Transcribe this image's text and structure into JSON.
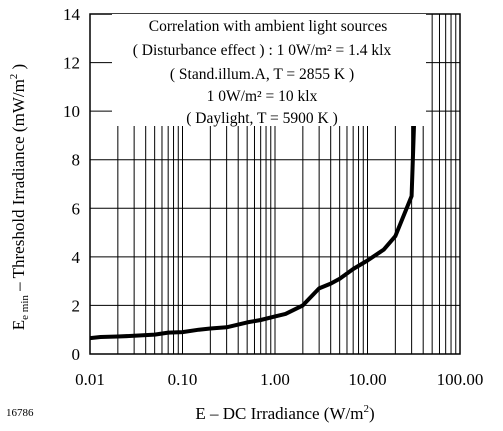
{
  "chart_data": {
    "type": "line",
    "x_scale": "log",
    "xlim": [
      0.01,
      100
    ],
    "ylim": [
      0,
      14
    ],
    "grid": true,
    "xlabel_main": "E – DC Irradiance (W/m",
    "xlabel_sup": "2",
    "xlabel_end": ")",
    "ylabel_sub_symbol": "E",
    "ylabel_subscript": "e min",
    "ylabel_main": " – Threshold Irradiance (mW/m",
    "ylabel_sup": "2",
    "ylabel_end": " )",
    "x_ticks": [
      {
        "value": 0.01,
        "label": "0.01"
      },
      {
        "value": 0.1,
        "label": "0.10"
      },
      {
        "value": 1,
        "label": "1.00"
      },
      {
        "value": 10,
        "label": "10.00"
      },
      {
        "value": 100,
        "label": "100.00"
      }
    ],
    "y_ticks": [
      {
        "value": 0,
        "label": "0"
      },
      {
        "value": 2,
        "label": "2"
      },
      {
        "value": 4,
        "label": "4"
      },
      {
        "value": 6,
        "label": "6"
      },
      {
        "value": 8,
        "label": "8"
      },
      {
        "value": 10,
        "label": "10"
      },
      {
        "value": 12,
        "label": "12"
      },
      {
        "value": 14,
        "label": "14"
      }
    ],
    "series": [
      {
        "points": [
          {
            "x": 0.01,
            "y": 0.65
          },
          {
            "x": 0.013,
            "y": 0.7
          },
          {
            "x": 0.02,
            "y": 0.72
          },
          {
            "x": 0.03,
            "y": 0.75
          },
          {
            "x": 0.05,
            "y": 0.8
          },
          {
            "x": 0.07,
            "y": 0.88
          },
          {
            "x": 0.1,
            "y": 0.9
          },
          {
            "x": 0.15,
            "y": 1.0
          },
          {
            "x": 0.2,
            "y": 1.05
          },
          {
            "x": 0.3,
            "y": 1.1
          },
          {
            "x": 0.5,
            "y": 1.3
          },
          {
            "x": 0.7,
            "y": 1.4
          },
          {
            "x": 1.0,
            "y": 1.55
          },
          {
            "x": 1.3,
            "y": 1.65
          },
          {
            "x": 2.0,
            "y": 2.0
          },
          {
            "x": 3.0,
            "y": 2.7
          },
          {
            "x": 4.0,
            "y": 2.9
          },
          {
            "x": 5.0,
            "y": 3.1
          },
          {
            "x": 7.0,
            "y": 3.5
          },
          {
            "x": 10.0,
            "y": 3.85
          },
          {
            "x": 15.0,
            "y": 4.3
          },
          {
            "x": 20.0,
            "y": 4.85
          },
          {
            "x": 30.0,
            "y": 6.5
          },
          {
            "x": 35.0,
            "y": 14.0
          }
        ]
      }
    ],
    "annotations": [
      "Correlation with ambient light sources",
      "( Disturbance effect ) : 1 0W/m² = 1.4 klx",
      "( Stand.illum.A, T = 2855 K )",
      "1 0W/m² = 10 klx",
      "( Daylight, T = 5900 K )"
    ]
  },
  "figure_code": "16786"
}
